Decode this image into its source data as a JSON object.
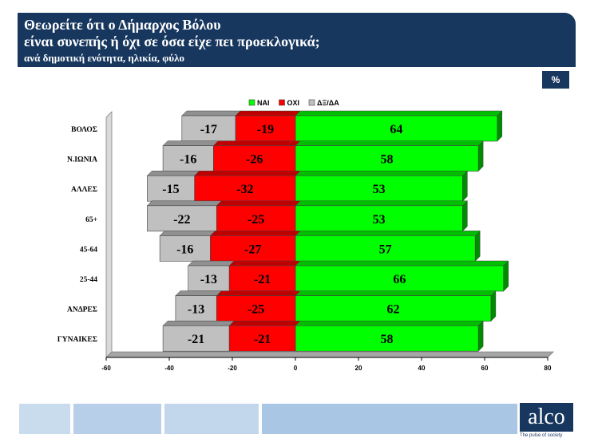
{
  "header": {
    "title_line1": "Θεωρείτε ότι ο Δήμαρχος Βόλου",
    "title_line2": "είναι συνεπής ή όχι σε όσα είχε πει προεκλογικά;",
    "subtitle": "ανά δημοτική ενότητα, ηλικία, φύλο"
  },
  "badge": {
    "label": "%"
  },
  "logo": {
    "text": "alco",
    "tagline": "The pulse of society"
  },
  "colors": {
    "yes": "#00ff00",
    "no": "#ff0000",
    "dk": "#c0c0c0",
    "header_bg": "#17375e"
  },
  "chart_data": {
    "type": "bar",
    "orientation": "horizontal",
    "stacked": true,
    "categories": [
      "ΒΟΛΟΣ",
      "Ν.ΙΩΝΙΑ",
      "ΑΛΛΕΣ",
      "65+",
      "45-64",
      "25-44",
      "ΑΝΔΡΕΣ",
      "ΓΥΝΑΙΚΕΣ"
    ],
    "series": [
      {
        "name": "ΝΑΙ",
        "color": "#00ff00",
        "values": [
          64,
          58,
          53,
          53,
          57,
          66,
          62,
          58
        ]
      },
      {
        "name": "ΟΧΙ",
        "color": "#ff0000",
        "values": [
          -19,
          -26,
          -32,
          -25,
          -27,
          -21,
          -25,
          -21
        ]
      },
      {
        "name": "ΔΞ/ΔΑ",
        "color": "#c0c0c0",
        "values": [
          -17,
          -16,
          -15,
          -22,
          -16,
          -13,
          -13,
          -21
        ]
      }
    ],
    "xlim": [
      -60,
      80
    ],
    "xticks": [
      -60,
      -40,
      -20,
      0,
      20,
      40,
      60,
      80
    ],
    "legend": "top",
    "grid": false
  }
}
